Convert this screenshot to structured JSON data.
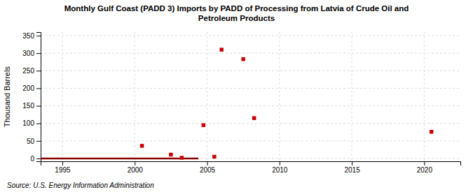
{
  "chart_data": {
    "type": "scatter",
    "title": "Monthly Gulf Coast (PADD 3) Imports by PADD of Processing from Latvia of Crude Oil and\nPetroleum Products",
    "y_label": "Thousand Barrels",
    "annotations": [
      "Source: U.S. Energy Information Administration"
    ],
    "xlim": [
      1993.5,
      2022.5
    ],
    "xticks": [
      1995,
      2000,
      2005,
      2010,
      2015,
      2020
    ],
    "ylim": [
      -8,
      360
    ],
    "yticks": [
      0,
      50,
      100,
      150,
      200,
      250,
      300,
      350
    ],
    "grid": true,
    "series": [
      {
        "type": "line",
        "color": "#8b0000",
        "line_style": "solid",
        "x": [
          1993.5,
          2004.4
        ],
        "values": [
          0,
          0
        ]
      },
      {
        "type": "scatter",
        "color": "#cc0000",
        "marker": "square",
        "x": [
          2000.5,
          2002.5,
          2003.25,
          2004.75,
          2005.5,
          2006.0,
          2007.5,
          2008.25,
          2020.5
        ],
        "values": [
          36,
          11,
          2,
          95,
          5,
          310,
          283,
          115,
          76
        ]
      }
    ]
  }
}
